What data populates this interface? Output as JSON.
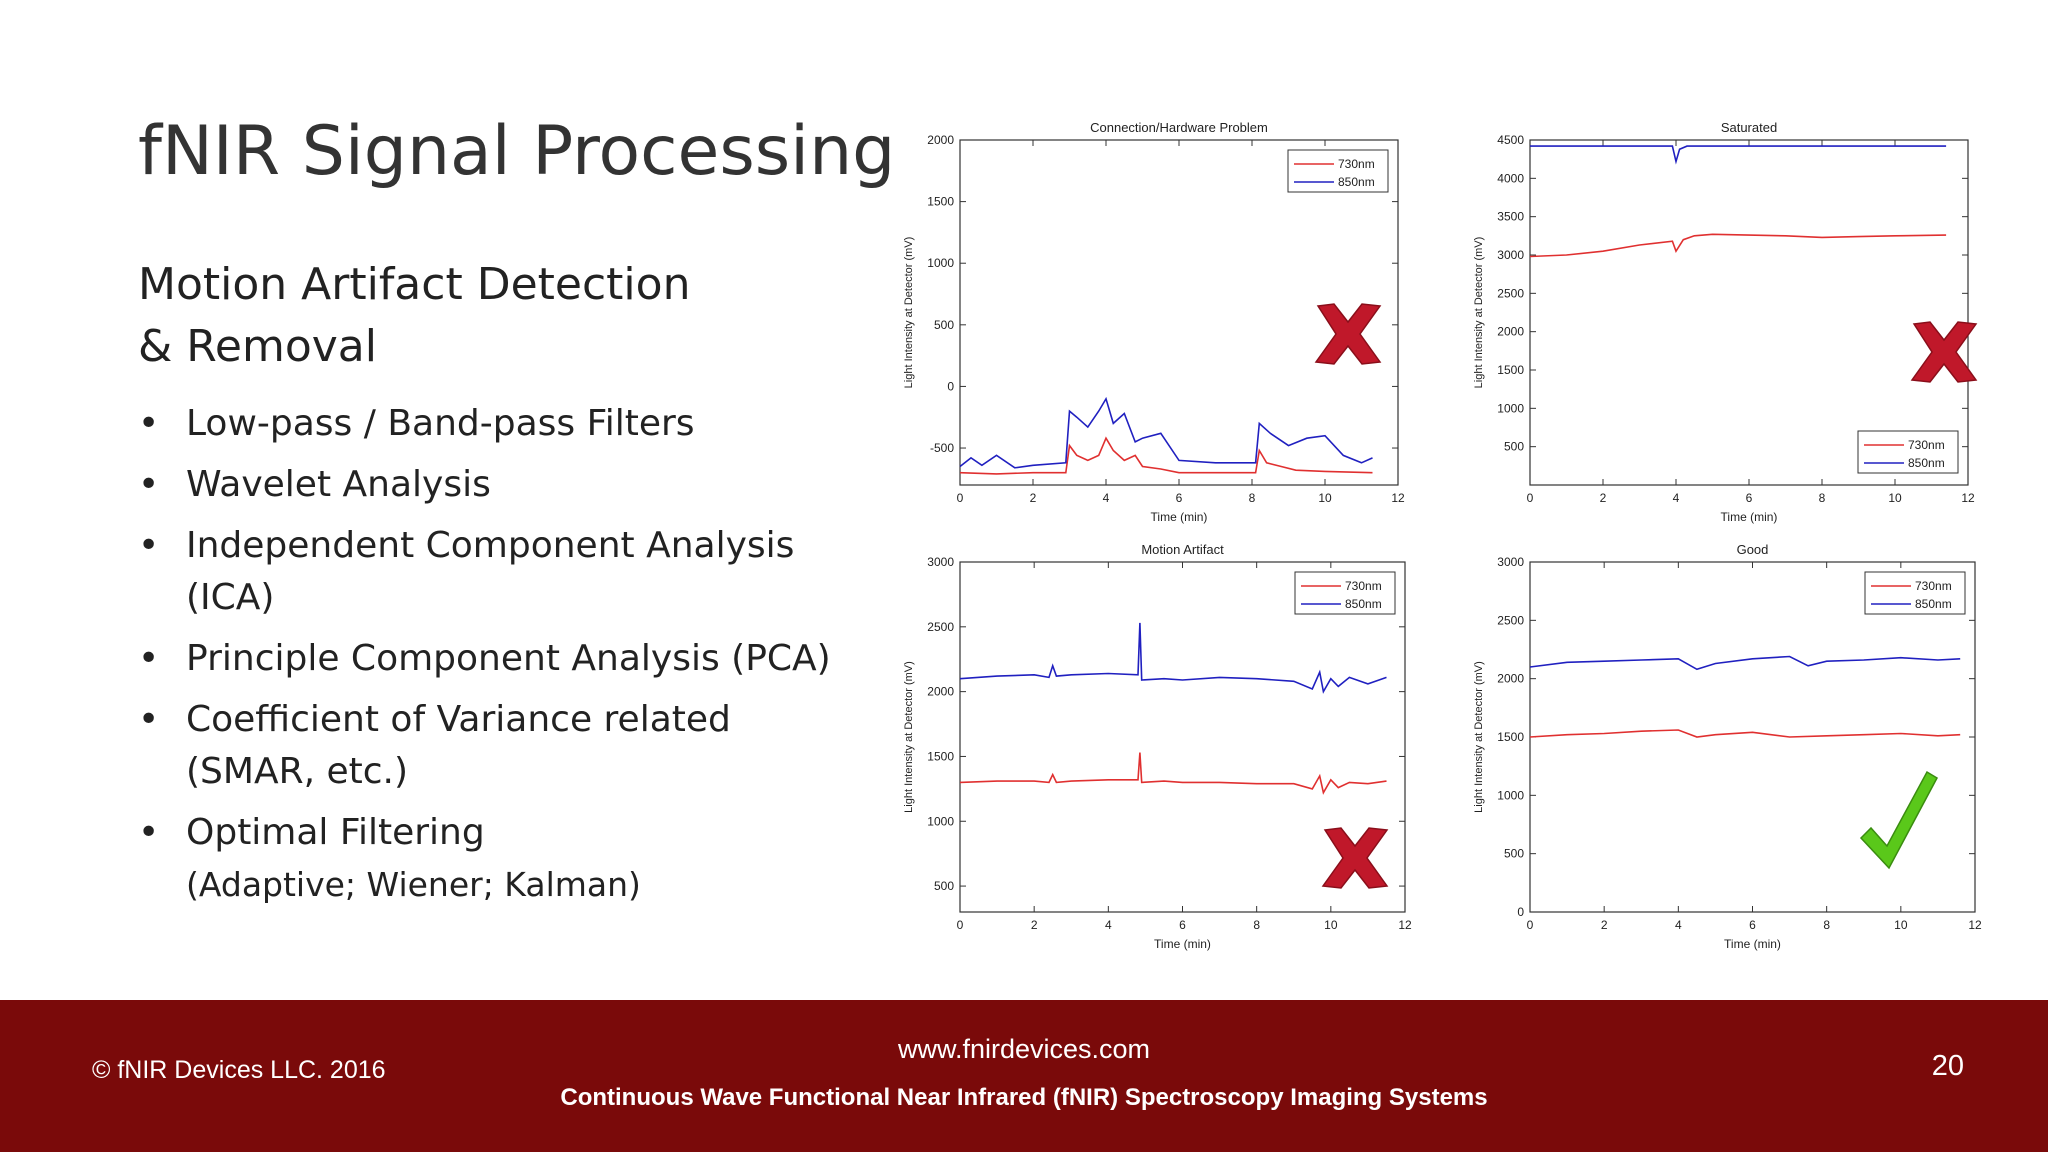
{
  "slide": {
    "title": "fNIR Signal Processing",
    "subtitle_line1": "Motion Artifact Detection",
    "subtitle_line2": "& Removal",
    "bullets": [
      {
        "line1": "Low-pass / Band-pass Filters"
      },
      {
        "line1": "Wavelet Analysis"
      },
      {
        "line1": "Independent Component Analysis",
        "line2": "(ICA)"
      },
      {
        "line1": "Principle Component Analysis (PCA)"
      },
      {
        "line1": "Coefficient of Variance related",
        "line2": "(SMAR, etc.)"
      },
      {
        "line1": "Optimal Filtering",
        "line2": "(Adaptive; Wiener; Kalman)"
      }
    ],
    "bullet_symbol": "•"
  },
  "footer": {
    "copyright": "© fNIR Devices LLC. 2016",
    "url": "www.fnirdevices.com",
    "tagline": "Continuous Wave Functional Near Infrared (fNIR) Spectroscopy Imaging Systems",
    "page_number": "20",
    "background_color": "#7a0a0a"
  },
  "chart_colors": {
    "730nm": "#e03030",
    "850nm": "#2020c0"
  },
  "chart_data": [
    {
      "type": "line",
      "title": "Connection/Hardware Problem",
      "xlabel": "Time (min)",
      "ylabel": "Light Intensity at Detector (mV)",
      "xlim": [
        0,
        12
      ],
      "ylim": [
        -800,
        2000
      ],
      "xticks": [
        0,
        2,
        4,
        6,
        8,
        10,
        12
      ],
      "yticks": [
        -500,
        0,
        500,
        1000,
        1500,
        2000
      ],
      "legend_position": "top-right",
      "verdict": "fail",
      "series": [
        {
          "name": "730nm",
          "x": [
            0,
            1,
            2,
            2.9,
            3.0,
            3.2,
            3.5,
            3.8,
            4.0,
            4.2,
            4.5,
            4.8,
            5.0,
            5.5,
            6,
            7,
            8.1,
            8.2,
            8.4,
            8.8,
            9.2,
            10,
            11.3
          ],
          "y": [
            -700,
            -710,
            -700,
            -700,
            -480,
            -560,
            -600,
            -560,
            -420,
            -520,
            -600,
            -560,
            -650,
            -670,
            -700,
            -700,
            -700,
            -520,
            -620,
            -650,
            -680,
            -690,
            -700
          ]
        },
        {
          "name": "850nm",
          "x": [
            0,
            0.3,
            0.6,
            1,
            1.5,
            2,
            2.9,
            3.0,
            3.2,
            3.5,
            3.8,
            4.0,
            4.2,
            4.5,
            4.8,
            5.0,
            5.5,
            6,
            7,
            8.1,
            8.2,
            8.5,
            9,
            9.5,
            10,
            10.5,
            11,
            11.3
          ],
          "y": [
            -650,
            -580,
            -640,
            -560,
            -660,
            -640,
            -620,
            -200,
            -250,
            -330,
            -200,
            -100,
            -300,
            -220,
            -450,
            -420,
            -380,
            -600,
            -620,
            -620,
            -300,
            -380,
            -480,
            -420,
            -400,
            -560,
            -620,
            -580
          ]
        }
      ]
    },
    {
      "type": "line",
      "title": "Saturated",
      "xlabel": "Time (min)",
      "ylabel": "Light Intensity at Detector (mV)",
      "xlim": [
        0,
        12
      ],
      "ylim": [
        0,
        4500
      ],
      "xticks": [
        0,
        2,
        4,
        6,
        8,
        10,
        12
      ],
      "yticks": [
        500,
        1000,
        1500,
        2000,
        2500,
        3000,
        3500,
        4000,
        4500
      ],
      "legend_position": "bottom-right",
      "verdict": "fail",
      "series": [
        {
          "name": "730nm",
          "x": [
            0,
            1,
            2,
            3,
            3.9,
            4.0,
            4.2,
            4.5,
            5,
            6,
            7,
            8,
            9,
            10,
            11.4
          ],
          "y": [
            2980,
            3000,
            3050,
            3130,
            3180,
            3050,
            3200,
            3250,
            3270,
            3260,
            3250,
            3230,
            3240,
            3250,
            3260
          ]
        },
        {
          "name": "850nm",
          "x": [
            0,
            3.9,
            4.0,
            4.1,
            4.3,
            5,
            8,
            11.4
          ],
          "y": [
            4420,
            4420,
            4220,
            4380,
            4420,
            4420,
            4420,
            4420
          ]
        }
      ]
    },
    {
      "type": "line",
      "title": "Motion Artifact",
      "xlabel": "Time (min)",
      "ylabel": "Light Intensity at Detector (mV)",
      "xlim": [
        0,
        12
      ],
      "ylim": [
        300,
        3000
      ],
      "xticks": [
        0,
        2,
        4,
        6,
        8,
        10,
        12
      ],
      "yticks": [
        500,
        1000,
        1500,
        2000,
        2500,
        3000
      ],
      "legend_position": "top-right",
      "verdict": "fail",
      "series": [
        {
          "name": "730nm",
          "x": [
            0,
            1,
            2,
            2.4,
            2.5,
            2.6,
            3,
            4,
            4.8,
            4.85,
            4.9,
            5.5,
            6,
            7,
            8,
            9,
            9.5,
            9.7,
            9.8,
            10,
            10.2,
            10.5,
            11,
            11.5
          ],
          "y": [
            1300,
            1310,
            1310,
            1300,
            1360,
            1300,
            1310,
            1320,
            1320,
            1530,
            1300,
            1310,
            1300,
            1300,
            1290,
            1290,
            1250,
            1350,
            1220,
            1320,
            1260,
            1300,
            1290,
            1310
          ]
        },
        {
          "name": "850nm",
          "x": [
            0,
            1,
            2,
            2.4,
            2.5,
            2.6,
            3,
            4,
            4.8,
            4.85,
            4.9,
            5.5,
            6,
            7,
            8,
            9,
            9.5,
            9.7,
            9.8,
            10,
            10.2,
            10.5,
            11,
            11.5
          ],
          "y": [
            2100,
            2120,
            2130,
            2110,
            2200,
            2120,
            2130,
            2140,
            2130,
            2530,
            2090,
            2100,
            2090,
            2110,
            2100,
            2080,
            2020,
            2150,
            2000,
            2100,
            2040,
            2110,
            2060,
            2110
          ]
        }
      ]
    },
    {
      "type": "line",
      "title": "Good",
      "xlabel": "Time (min)",
      "ylabel": "Light Intensity at Detector (mV)",
      "xlim": [
        0,
        12
      ],
      "ylim": [
        0,
        3000
      ],
      "xticks": [
        0,
        2,
        4,
        6,
        8,
        10,
        12
      ],
      "yticks": [
        0,
        500,
        1000,
        1500,
        2000,
        2500,
        3000
      ],
      "legend_position": "top-right",
      "verdict": "pass",
      "series": [
        {
          "name": "730nm",
          "x": [
            0,
            1,
            2,
            3,
            4,
            4.5,
            5,
            6,
            7,
            8,
            9,
            10,
            11,
            11.6
          ],
          "y": [
            1500,
            1520,
            1530,
            1550,
            1560,
            1500,
            1520,
            1540,
            1500,
            1510,
            1520,
            1530,
            1510,
            1520
          ]
        },
        {
          "name": "850nm",
          "x": [
            0,
            1,
            2,
            3,
            4,
            4.5,
            5,
            6,
            7,
            7.5,
            8,
            9,
            10,
            11,
            11.6
          ],
          "y": [
            2100,
            2140,
            2150,
            2160,
            2170,
            2080,
            2130,
            2170,
            2190,
            2110,
            2150,
            2160,
            2180,
            2160,
            2170
          ]
        }
      ]
    }
  ]
}
